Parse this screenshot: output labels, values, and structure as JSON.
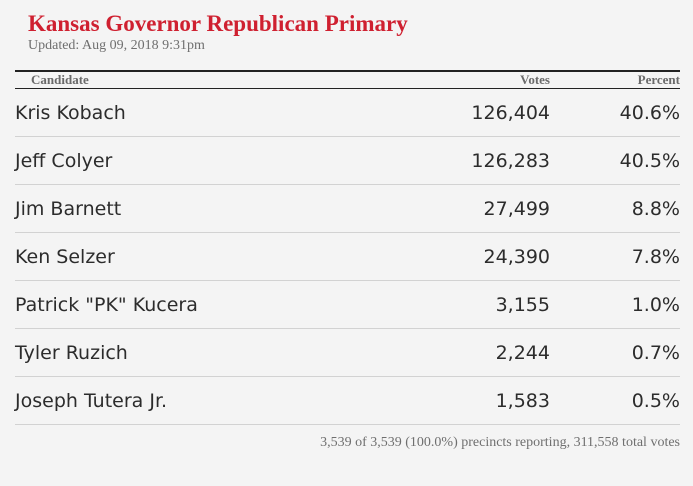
{
  "header": {
    "title": "Kansas Governor Republican Primary",
    "updated": "Updated: Aug 09, 2018 9:31pm"
  },
  "table": {
    "columns": {
      "candidate": "Candidate",
      "votes": "Votes",
      "percent": "Percent"
    },
    "rows": [
      {
        "candidate": "Kris Kobach",
        "votes": "126,404",
        "percent": "40.6%"
      },
      {
        "candidate": "Jeff Colyer",
        "votes": "126,283",
        "percent": "40.5%"
      },
      {
        "candidate": "Jim Barnett",
        "votes": "27,499",
        "percent": "8.8%"
      },
      {
        "candidate": "Ken Selzer",
        "votes": "24,390",
        "percent": "7.8%"
      },
      {
        "candidate": "Patrick \"PK\" Kucera",
        "votes": "3,155",
        "percent": "1.0%"
      },
      {
        "candidate": "Tyler Ruzich",
        "votes": "2,244",
        "percent": "0.7%"
      },
      {
        "candidate": "Joseph Tutera Jr.",
        "votes": "1,583",
        "percent": "0.5%"
      }
    ]
  },
  "footer": {
    "summary": "3,539 of 3,539 (100.0%) precincts reporting, 311,558 total votes"
  },
  "colors": {
    "title": "#cf2030",
    "background": "#f4f4f4",
    "text": "#2c2c2c",
    "muted": "#6f6f6f"
  }
}
